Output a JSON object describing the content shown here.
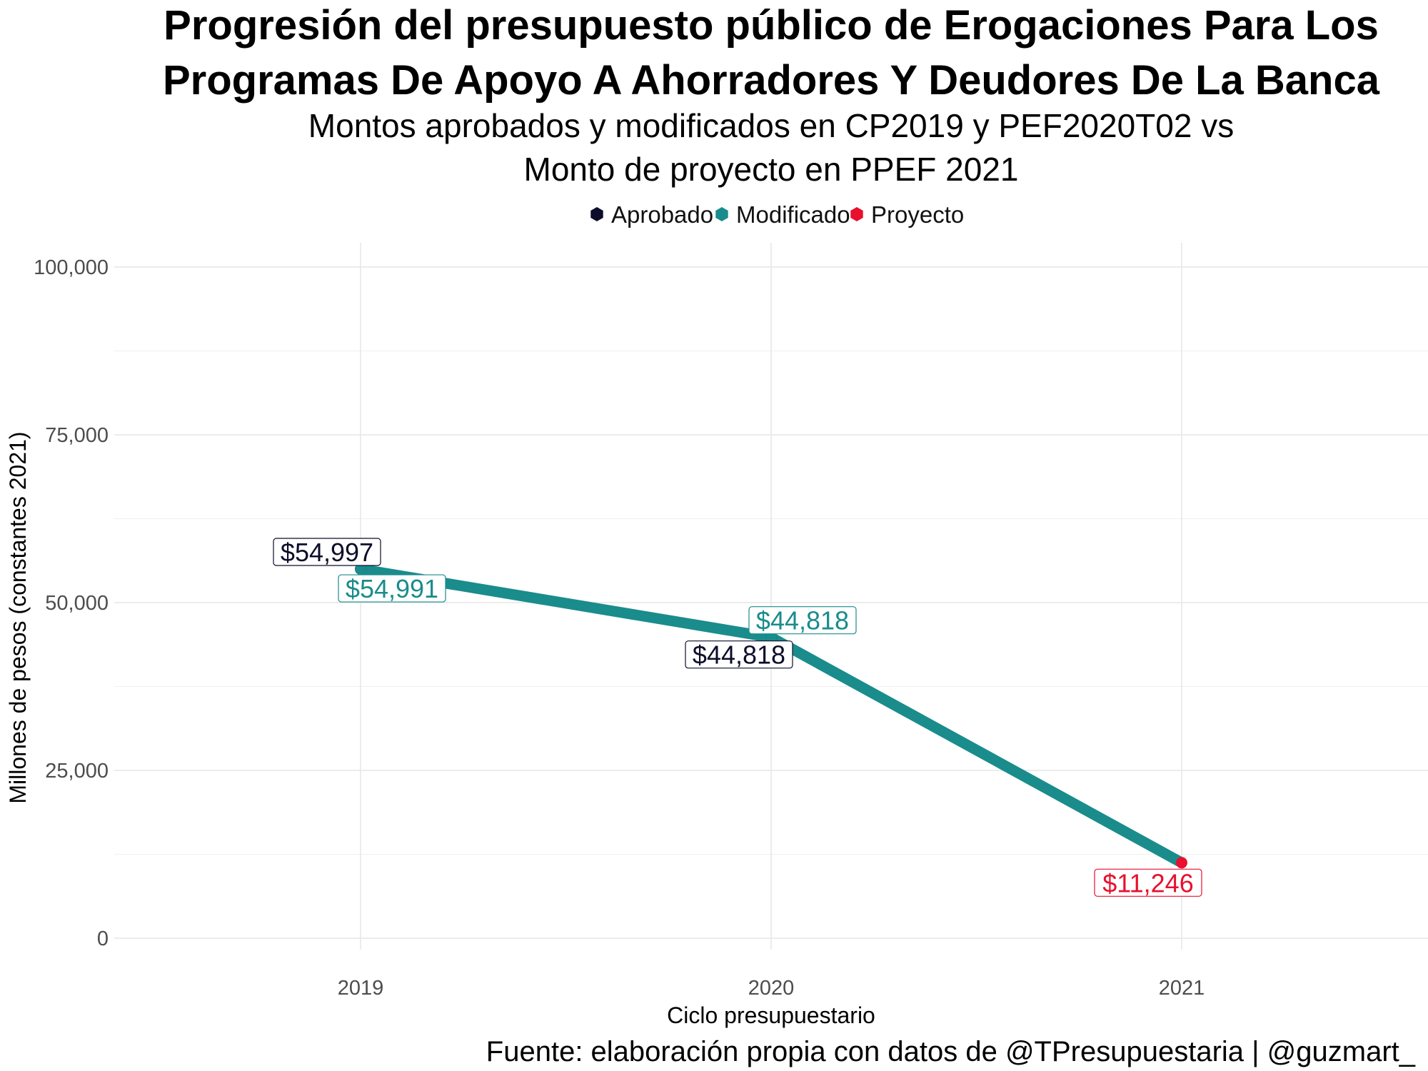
{
  "chart_data": {
    "type": "line",
    "title_lines": [
      "Progresión del presupuesto público de Erogaciones Para Los",
      "Programas De Apoyo A Ahorradores Y Deudores De La Banca"
    ],
    "subtitle_lines": [
      "Montos aprobados y modificados en CP2019 y PEF2020T02 vs",
      "Monto de proyecto en PPEF 2021"
    ],
    "xlabel": "Ciclo presupuestario",
    "ylabel": "Millones de pesos (constantes 2021)",
    "caption": "Fuente: elaboración propia con datos de @TPresupuestaria | @guzmart_",
    "categories": [
      "2019",
      "2020",
      "2021"
    ],
    "ylim": [
      0,
      100000
    ],
    "yticks": [
      0,
      25000,
      50000,
      75000,
      100000
    ],
    "ytick_labels": [
      "0",
      "25,000",
      "50,000",
      "75,000",
      "100,000"
    ],
    "grid": true,
    "legend_position": "top",
    "series": [
      {
        "name": "Aprobado",
        "color": "#0d0d2b",
        "points": [
          {
            "x": "2019",
            "y": 54997,
            "label": "$54,997"
          },
          {
            "x": "2020",
            "y": 44818,
            "label": "$44,818"
          }
        ]
      },
      {
        "name": "Modificado",
        "color": "#1a8c8c",
        "points": [
          {
            "x": "2019",
            "y": 54991,
            "label": "$54,991"
          },
          {
            "x": "2020",
            "y": 44818,
            "label": "$44,818"
          }
        ]
      },
      {
        "name": "Proyecto",
        "color": "#e8102e",
        "points": [
          {
            "x": "2021",
            "y": 11246,
            "label": "$11,246"
          }
        ]
      }
    ],
    "trend_line": {
      "color": "#1a8c8c",
      "points": [
        {
          "x": "2019",
          "y": 54991
        },
        {
          "x": "2020",
          "y": 44818
        },
        {
          "x": "2021",
          "y": 11246
        }
      ]
    }
  }
}
